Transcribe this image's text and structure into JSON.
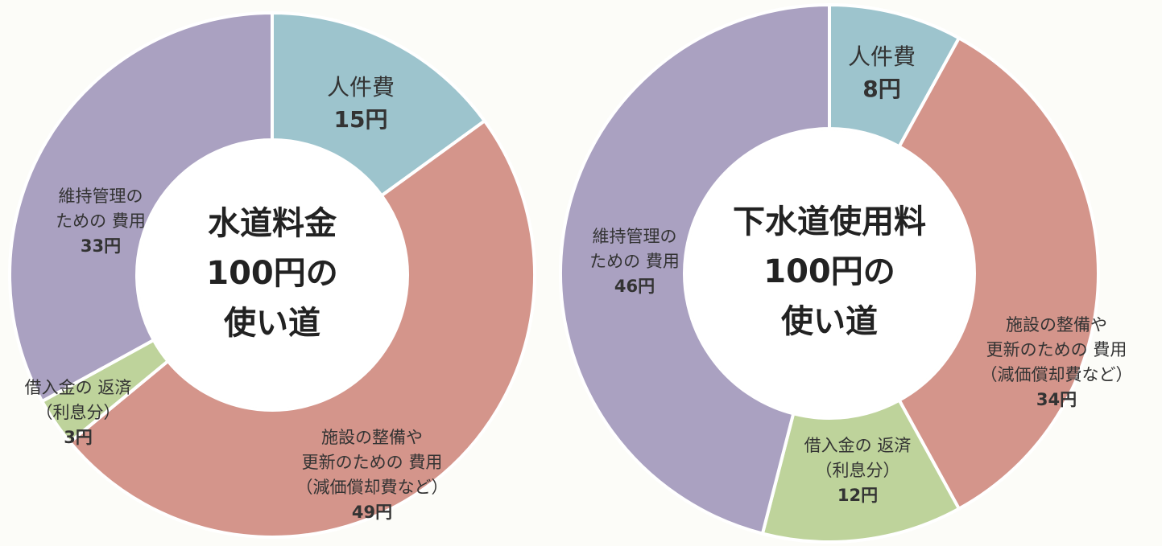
{
  "chart_data": [
    {
      "type": "donut",
      "title": [
        "水道料金",
        "100円の",
        "使い道"
      ],
      "categories": [
        [
          "人件費"
        ],
        [
          "施設の整備や",
          "更新のための 費用",
          "（減価償却費など）"
        ],
        [
          "借入金の 返済",
          "（利息分）"
        ],
        [
          "維持管理の",
          "ための 費用"
        ]
      ],
      "values": [
        15,
        49,
        3,
        33
      ],
      "value_labels": [
        "15円",
        "49円",
        "3円",
        "33円"
      ],
      "colors": [
        "#9dc4cd",
        "#d4958b",
        "#bed39b",
        "#aaa1c1"
      ]
    },
    {
      "type": "donut",
      "title": [
        "下水道使用料",
        "100円の",
        "使い道"
      ],
      "categories": [
        [
          "人件費"
        ],
        [
          "施設の整備や",
          "更新のための 費用",
          "（減価償却費など）"
        ],
        [
          "借入金の 返済",
          "（利息分）"
        ],
        [
          "維持管理の",
          "ための 費用"
        ]
      ],
      "values": [
        8,
        34,
        12,
        46
      ],
      "value_labels": [
        "8円",
        "34円",
        "12円",
        "46円"
      ],
      "colors": [
        "#9dc4cd",
        "#d4958b",
        "#bed39b",
        "#aaa1c1"
      ]
    }
  ]
}
